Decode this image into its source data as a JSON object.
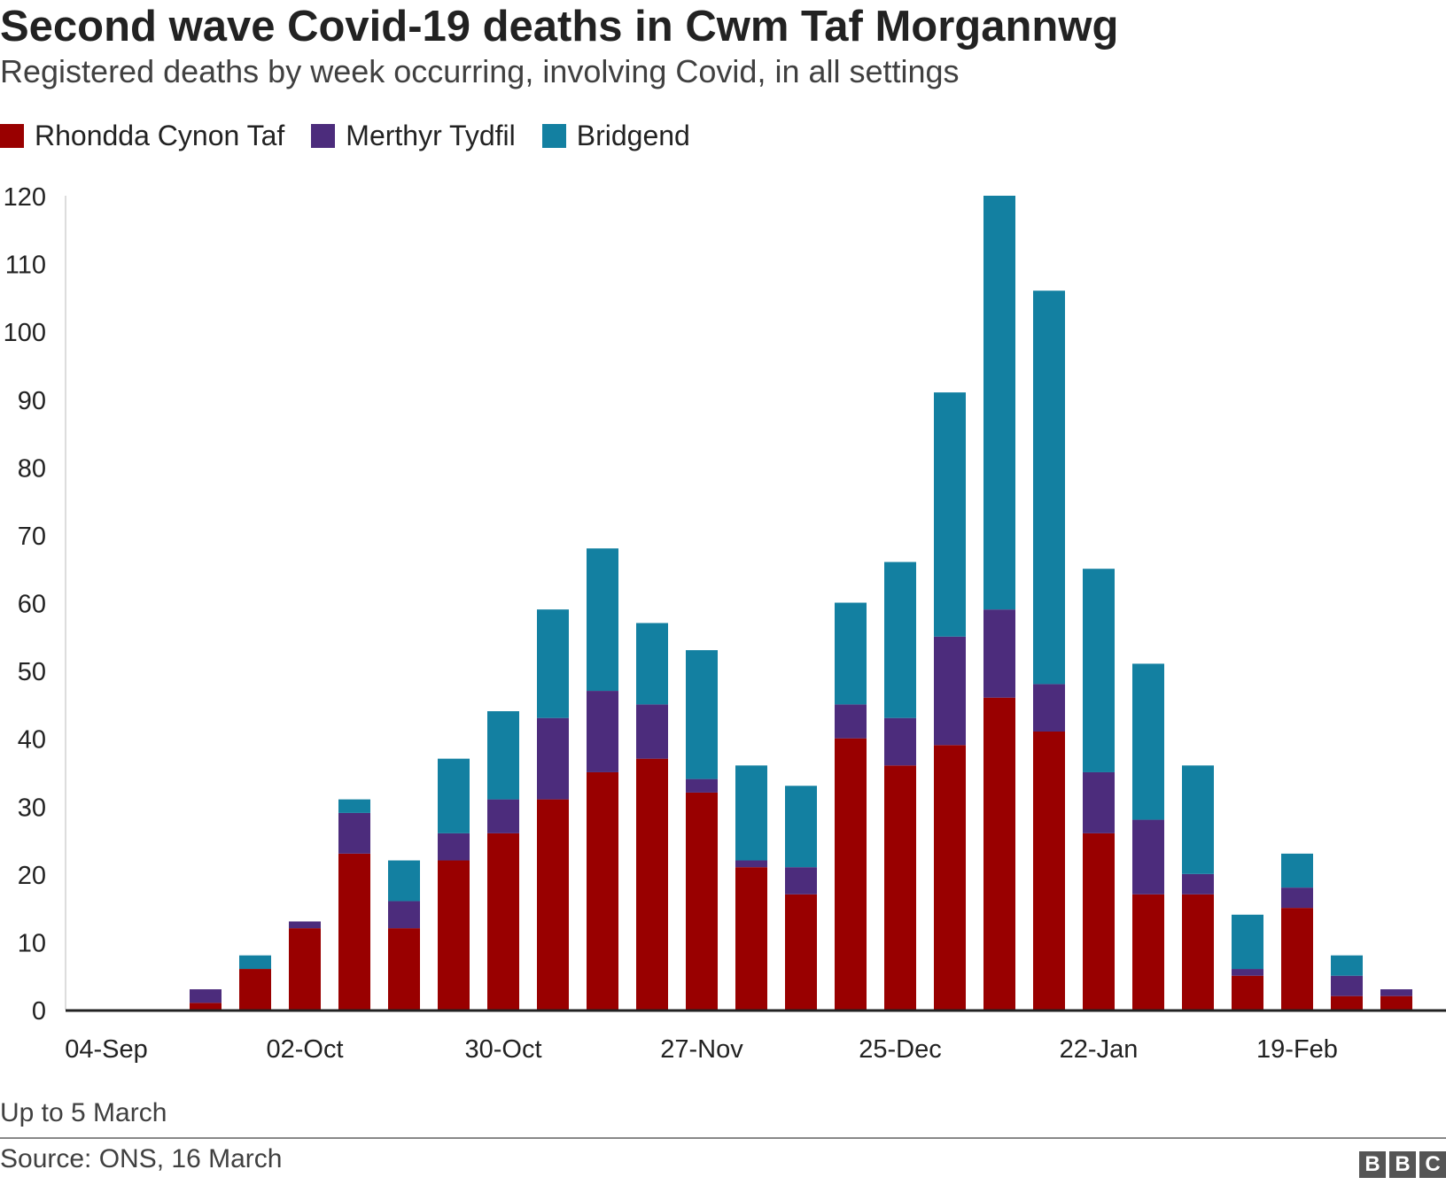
{
  "header": {
    "title": "Second wave Covid-19 deaths in Cwm Taf Morgannwg",
    "subtitle": "Registered deaths by week occurring, involving Covid, in all settings"
  },
  "footer": {
    "note": "Up to 5 March",
    "source": "Source: ONS, 16 March",
    "logo_letters": [
      "B",
      "B",
      "C"
    ]
  },
  "chart_data": {
    "type": "bar",
    "stacked": true,
    "title": "Second wave Covid-19 deaths in Cwm Taf Morgannwg",
    "xlabel": "",
    "ylabel": "",
    "ylim": [
      0,
      120
    ],
    "yticks": [
      0,
      10,
      20,
      30,
      40,
      50,
      60,
      70,
      80,
      90,
      100,
      110,
      120
    ],
    "grid": false,
    "legend_position": "top-left",
    "categories": [
      "04-Sep",
      "11-Sep",
      "18-Sep",
      "25-Sep",
      "02-Oct",
      "09-Oct",
      "16-Oct",
      "23-Oct",
      "30-Oct",
      "06-Nov",
      "13-Nov",
      "20-Nov",
      "27-Nov",
      "04-Dec",
      "11-Dec",
      "18-Dec",
      "25-Dec",
      "01-Jan",
      "08-Jan",
      "15-Jan",
      "22-Jan",
      "29-Jan",
      "05-Feb",
      "12-Feb",
      "19-Feb",
      "26-Feb",
      "05-Mar"
    ],
    "tick_labels": [
      {
        "index": 0,
        "label": "04-Sep"
      },
      {
        "index": 4,
        "label": "02-Oct"
      },
      {
        "index": 8,
        "label": "30-Oct"
      },
      {
        "index": 12,
        "label": "27-Nov"
      },
      {
        "index": 16,
        "label": "25-Dec"
      },
      {
        "index": 20,
        "label": "22-Jan"
      },
      {
        "index": 24,
        "label": "19-Feb"
      }
    ],
    "series": [
      {
        "name": "Rhondda Cynon Taf",
        "color": "#990000",
        "values": [
          0,
          0,
          1,
          6,
          12,
          23,
          12,
          22,
          26,
          31,
          35,
          37,
          32,
          21,
          17,
          40,
          36,
          39,
          46,
          41,
          26,
          17,
          17,
          5,
          15,
          2,
          2
        ]
      },
      {
        "name": "Merthyr Tydfil",
        "color": "#4c2c7c",
        "values": [
          0,
          0,
          2,
          0,
          1,
          6,
          4,
          4,
          5,
          12,
          12,
          8,
          2,
          1,
          4,
          5,
          7,
          16,
          13,
          7,
          9,
          11,
          3,
          1,
          3,
          3,
          1
        ]
      },
      {
        "name": "Bridgend",
        "color": "#1380a1",
        "values": [
          0,
          0,
          0,
          2,
          0,
          2,
          6,
          11,
          13,
          16,
          21,
          12,
          19,
          14,
          12,
          15,
          23,
          36,
          61,
          58,
          30,
          23,
          16,
          8,
          5,
          3,
          0
        ]
      }
    ]
  }
}
